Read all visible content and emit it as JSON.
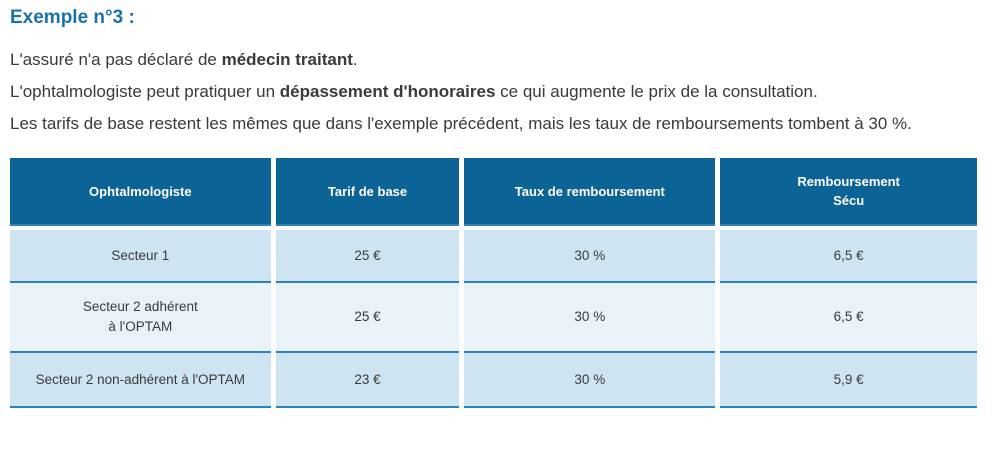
{
  "page": {
    "title": "Exemple n°3 :"
  },
  "paragraph": {
    "line1": {
      "pre": "L'assuré n'a pas déclaré de ",
      "bold": "médecin traitant",
      "post": "."
    },
    "line2": {
      "pre": "L'ophtalmologiste peut pratiquer un ",
      "bold": "dépassement d'honoraires",
      "post": " ce qui augmente le prix de la consultation."
    },
    "line3": {
      "text": "Les tarifs de base restent les mêmes que dans l'exemple précédent, mais les taux de remboursements tombent à 30 %."
    }
  },
  "table": {
    "headers": [
      "Ophtalmologiste",
      "Tarif de base",
      "Taux de remboursement",
      "Remboursement\nSécu"
    ],
    "rows": [
      {
        "cells": [
          "Secteur 1",
          "25 €",
          "30 %",
          "6,5 €"
        ]
      },
      {
        "cells": [
          "Secteur 2 adhérent\nà l'OPTAM",
          "25 €",
          "30 %",
          "6,5 €"
        ]
      },
      {
        "cells": [
          "Secteur 2 non-adhérent à l'OPTAM",
          "23 €",
          "30 %",
          "5,9 €"
        ]
      }
    ]
  },
  "colors": {
    "title_blue": "#1a73a8",
    "header_bg": "#0c6396",
    "row_light": "#cfe4f1",
    "row_lighter": "#e9f2f8",
    "row_border": "#2a84b8",
    "text": "#3a3a3a"
  }
}
